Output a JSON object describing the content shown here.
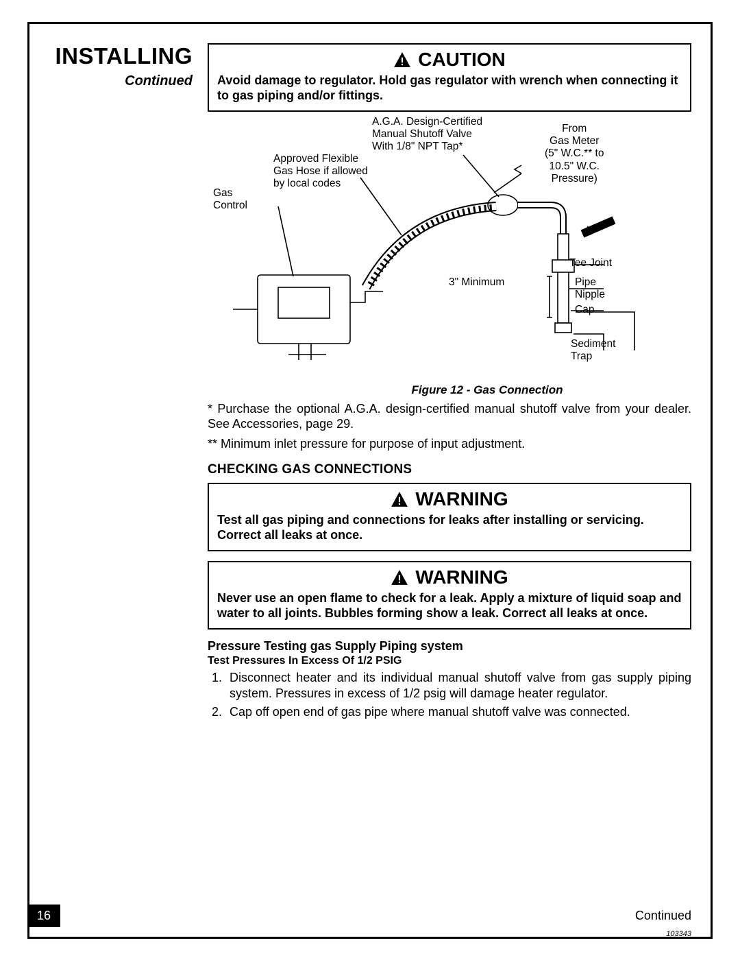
{
  "header": {
    "title": "INSTALLING",
    "continued": "Continued"
  },
  "caution": {
    "label": "CAUTION",
    "body": "Avoid damage to regulator. Hold gas regulator with wrench when connecting it to gas piping and/or fittings."
  },
  "diagram": {
    "caption": "Figure 12 - Gas Connection",
    "gas_control": "Gas\nControl",
    "hose": "Approved Flexible\nGas Hose if allowed\nby local codes",
    "valve": "A.G.A. Design-Certified\nManual Shutoff Valve\nWith 1/8\" NPT Tap*",
    "from_meter": "From\nGas Meter\n(5\" W.C.** to\n10.5\" W.C.\nPressure)",
    "min": "3\" Minimum",
    "tee": "Tee Joint",
    "nipple": "Pipe\nNipple",
    "cap": "Cap",
    "sediment": "Sediment\nTrap"
  },
  "notes": {
    "star": "* Purchase the optional A.G.A. design-certified manual shutoff valve from your dealer. See Accessories, page 29.",
    "dstar": "** Minimum inlet pressure for purpose of input adjustment."
  },
  "checking_title": "CHECKING GAS CONNECTIONS",
  "warn1": {
    "label": "WARNING",
    "body": "Test all gas piping and connections for leaks after installing or servicing. Correct all leaks at once."
  },
  "warn2": {
    "label": "WARNING",
    "body": "Never use an open flame to check for a leak. Apply a mixture of liquid soap and water to all joints. Bubbles forming show a leak. Correct all leaks at once."
  },
  "pressure": {
    "title": "Pressure Testing gas Supply Piping system",
    "sub": "Test Pressures In Excess Of 1/2 PSIG",
    "step1": "Disconnect heater and its individual manual shutoff valve from gas supply piping system. Pressures in excess of 1/2 psig will damage heater regulator.",
    "step2": "Cap off open end of gas pipe where manual shutoff valve was connected."
  },
  "footer": {
    "page": "16",
    "continued": "Continued",
    "docnum": "103343"
  },
  "colors": {
    "ink": "#000000",
    "paper": "#ffffff"
  }
}
